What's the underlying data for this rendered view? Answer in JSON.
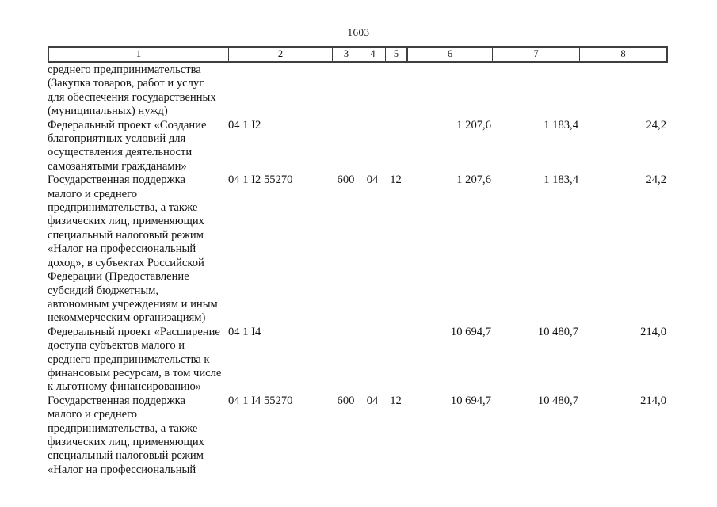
{
  "page": {
    "number": "1603"
  },
  "table": {
    "header_columns": [
      "1",
      "2",
      "3",
      "4",
      "5",
      "6",
      "7",
      "8"
    ],
    "rows": [
      {
        "name": "среднего предпринимательства\n(Закупка товаров, работ и услуг\nдля обеспечения государственных\n(муниципальных) нужд)",
        "code": "",
        "col3": "",
        "col4": "",
        "col5": "",
        "col6": "",
        "col7": "",
        "col8": ""
      },
      {
        "name": "Федеральный проект «Создание\nблагоприятных условий для\nосуществления деятельности\nсамозанятыми гражданами»",
        "code": "04 1 I2",
        "col3": "",
        "col4": "",
        "col5": "",
        "col6": "1 207,6",
        "col7": "1 183,4",
        "col8": "24,2"
      },
      {
        "name": "Государственная поддержка\nмалого и среднего\nпредпринимательства, а также\nфизических лиц, применяющих\nспециальный налоговый режим\n«Налог на профессиональный\nдоход», в субъектах Российской\nФедерации (Предоставление\nсубсидий бюджетным,\nавтономным учреждениям и иным\nнекоммерческим организациям)",
        "code": "04 1 I2 55270",
        "col3": "600",
        "col4": "04",
        "col5": "12",
        "col6": "1 207,6",
        "col7": "1 183,4",
        "col8": "24,2"
      },
      {
        "name": "Федеральный проект «Расширение\nдоступа субъектов малого и\nсреднего предпринимательства к\nфинансовым ресурсам, в том числе\nк льготному финансированию»",
        "code": "04 1 I4",
        "col3": "",
        "col4": "",
        "col5": "",
        "col6": "10 694,7",
        "col7": "10 480,7",
        "col8": "214,0"
      },
      {
        "name": "Государственная поддержка\nмалого и среднего\nпредпринимательства, а также\nфизических лиц, применяющих\nспециальный налоговый режим\n«Налог на профессиональный",
        "code": "04 1 I4 55270",
        "col3": "600",
        "col4": "04",
        "col5": "12",
        "col6": "10 694,7",
        "col7": "10 480,7",
        "col8": "214,0"
      }
    ]
  }
}
